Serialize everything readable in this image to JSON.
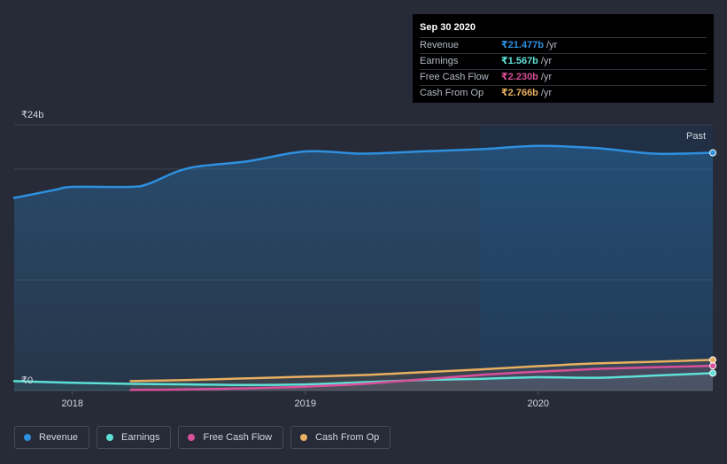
{
  "tooltip": {
    "date": "Sep 30 2020",
    "rows": [
      {
        "label": "Revenue",
        "value": "₹21.477b",
        "unit": "/yr",
        "color": "#2e90e0"
      },
      {
        "label": "Earnings",
        "value": "₹1.567b",
        "unit": "/yr",
        "color": "#5ee0d6"
      },
      {
        "label": "Free Cash Flow",
        "value": "₹2.230b",
        "unit": "/yr",
        "color": "#d9509a"
      },
      {
        "label": "Cash From Op",
        "value": "₹2.766b",
        "unit": "/yr",
        "color": "#e8b060"
      }
    ]
  },
  "legend": [
    {
      "label": "Revenue",
      "color": "#2e90e0"
    },
    {
      "label": "Earnings",
      "color": "#5ee0d6"
    },
    {
      "label": "Free Cash Flow",
      "color": "#d9509a"
    },
    {
      "label": "Cash From Op",
      "color": "#e8b060"
    }
  ],
  "chart_data": {
    "type": "area",
    "y_top_label": "₹24b",
    "y_bottom_label": "₹0",
    "past_label": "Past",
    "ylim": [
      0,
      24
    ],
    "xlim": [
      2017.75,
      2020.75
    ],
    "past_region_start": 2019.75,
    "x_ticks": [
      {
        "value": 2018,
        "label": "2018"
      },
      {
        "value": 2019,
        "label": "2019"
      },
      {
        "value": 2020,
        "label": "2020"
      }
    ],
    "series": [
      {
        "name": "Revenue",
        "color": "#2e90e0",
        "fill": true,
        "points": [
          [
            2017.75,
            17.4
          ],
          [
            2017.92,
            18.1
          ],
          [
            2018.0,
            18.4
          ],
          [
            2018.25,
            18.4
          ],
          [
            2018.33,
            18.7
          ],
          [
            2018.5,
            20.1
          ],
          [
            2018.75,
            20.7
          ],
          [
            2019.0,
            21.6
          ],
          [
            2019.25,
            21.4
          ],
          [
            2019.5,
            21.6
          ],
          [
            2019.75,
            21.8
          ],
          [
            2020.0,
            22.1
          ],
          [
            2020.25,
            21.9
          ],
          [
            2020.5,
            21.4
          ],
          [
            2020.75,
            21.477
          ]
        ]
      },
      {
        "name": "Earnings",
        "color": "#5ee0d6",
        "fill": false,
        "points": [
          [
            2017.75,
            0.85
          ],
          [
            2018.0,
            0.7
          ],
          [
            2018.25,
            0.6
          ],
          [
            2018.5,
            0.55
          ],
          [
            2018.75,
            0.5
          ],
          [
            2019.0,
            0.55
          ],
          [
            2019.25,
            0.75
          ],
          [
            2019.5,
            0.95
          ],
          [
            2019.75,
            1.05
          ],
          [
            2020.0,
            1.2
          ],
          [
            2020.25,
            1.15
          ],
          [
            2020.5,
            1.35
          ],
          [
            2020.75,
            1.567
          ]
        ]
      },
      {
        "name": "Free Cash Flow",
        "color": "#d9509a",
        "fill": false,
        "points": [
          [
            2018.25,
            0.05
          ],
          [
            2018.5,
            0.1
          ],
          [
            2018.75,
            0.2
          ],
          [
            2019.0,
            0.35
          ],
          [
            2019.25,
            0.6
          ],
          [
            2019.5,
            1.0
          ],
          [
            2019.75,
            1.4
          ],
          [
            2020.0,
            1.7
          ],
          [
            2020.25,
            1.95
          ],
          [
            2020.5,
            2.1
          ],
          [
            2020.75,
            2.23
          ]
        ]
      },
      {
        "name": "Cash From Op",
        "color": "#e8b060",
        "fill": false,
        "points": [
          [
            2018.25,
            0.85
          ],
          [
            2018.5,
            0.95
          ],
          [
            2018.75,
            1.1
          ],
          [
            2019.0,
            1.25
          ],
          [
            2019.25,
            1.4
          ],
          [
            2019.5,
            1.65
          ],
          [
            2019.75,
            1.9
          ],
          [
            2020.0,
            2.2
          ],
          [
            2020.25,
            2.45
          ],
          [
            2020.5,
            2.6
          ],
          [
            2020.75,
            2.766
          ]
        ]
      }
    ]
  }
}
